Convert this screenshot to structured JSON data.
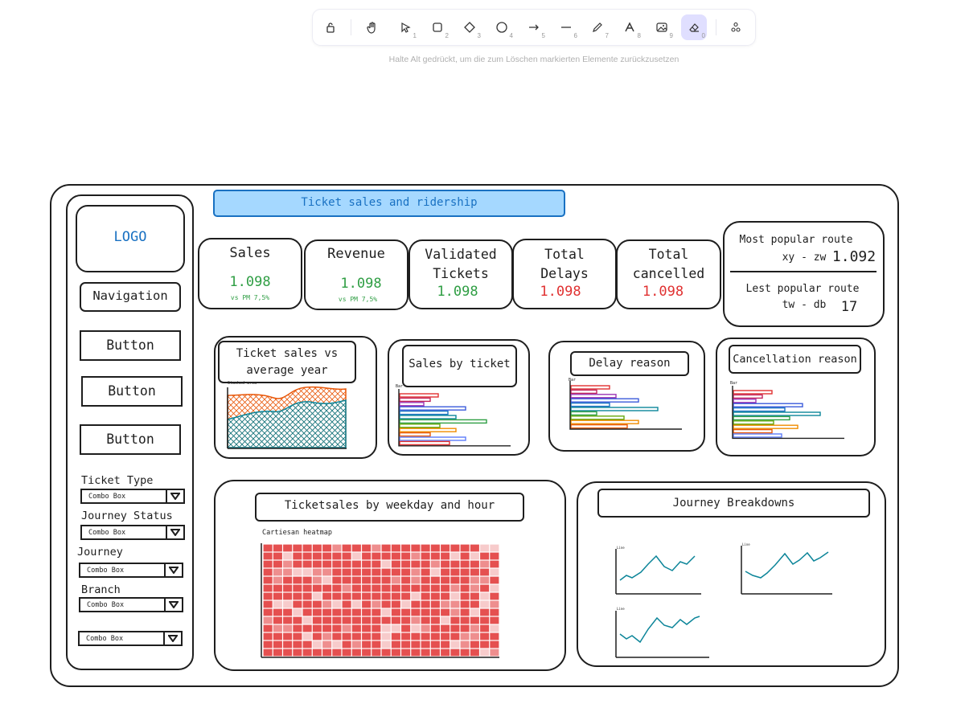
{
  "toolbar": {
    "tools": [
      {
        "name": "lock-icon",
        "key": ""
      },
      {
        "name": "hand-icon",
        "key": ""
      },
      {
        "name": "selection-icon",
        "key": "1"
      },
      {
        "name": "rectangle-icon",
        "key": "2"
      },
      {
        "name": "diamond-icon",
        "key": "3"
      },
      {
        "name": "ellipse-icon",
        "key": "4"
      },
      {
        "name": "arrow-icon",
        "key": "5"
      },
      {
        "name": "line-icon",
        "key": "6"
      },
      {
        "name": "pencil-icon",
        "key": "7"
      },
      {
        "name": "text-icon",
        "key": "8"
      },
      {
        "name": "image-icon",
        "key": "9"
      },
      {
        "name": "eraser-icon",
        "key": "0"
      },
      {
        "name": "extra-tools-icon",
        "key": ""
      }
    ],
    "active_tool": "eraser-icon",
    "hint": "Halte Alt gedrückt, um die zum Löschen markierten Elemente zurückzusetzen"
  },
  "sidebar": {
    "logo": "LOGO",
    "navigation": "Navigation",
    "buttons": [
      "Button",
      "Button",
      "Button"
    ],
    "filters": [
      {
        "label": "Ticket Type",
        "value": "Combo Box"
      },
      {
        "label": "Journey Status",
        "value": "Combo Box"
      },
      {
        "label": "Journey",
        "value": "Combo Box"
      },
      {
        "label": "Branch",
        "value": "Combo Box"
      },
      {
        "label": "",
        "value": "Combo Box"
      }
    ]
  },
  "header": {
    "title": "Ticket sales and ridership"
  },
  "kpis": [
    {
      "title": "Sales",
      "value": "1.098",
      "sub": "vs PM 7,5%"
    },
    {
      "title": "Revenue",
      "value": "1.098",
      "sub": "vs PM 7,5%"
    },
    {
      "title": "Validated Tickets",
      "value": "1.098"
    },
    {
      "title": "Total Delays",
      "value": "1.098"
    },
    {
      "title": "Total cancelled",
      "value": "1.098"
    }
  ],
  "routes": {
    "most_label": "Most popular route",
    "most_route": "xy - zw",
    "most_value": "1.092",
    "least_label": "Lest popular route",
    "least_route": "tw - db",
    "least_value": "17"
  },
  "charts": {
    "avg_year": {
      "title": "Ticket sales vs average year",
      "small": "Stacked area"
    },
    "by_ticket": {
      "title": "Sales by ticket",
      "small": "Bar"
    },
    "delay": {
      "title": "Delay reason",
      "small": "Bar"
    },
    "cancellation": {
      "title": "Cancellation reason",
      "small": "Bar"
    },
    "heatmap": {
      "title": "Ticketsales by weekday and hour",
      "small": "Cartiesan heatmap"
    },
    "journey": {
      "title": "Journey Breakdowns",
      "small": "Line"
    }
  },
  "colors": {
    "accent": "#1971c2",
    "header_fill": "#a5d8ff",
    "green": "#2f9e44",
    "red": "#e03131",
    "heat": "#e03131",
    "active_tool": "#e0dfff"
  }
}
